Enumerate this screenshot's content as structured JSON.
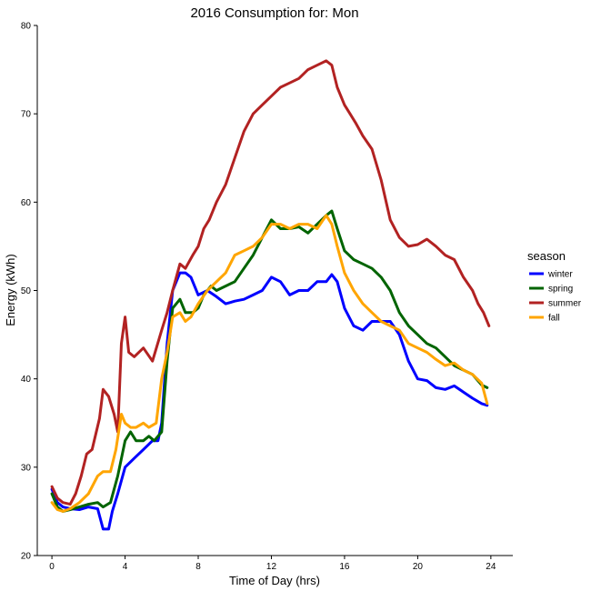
{
  "chart_data": {
    "type": "line",
    "title": "2016 Consumption for:  Mon",
    "xlabel": "Time of Day (hrs)",
    "ylabel": "Energy (kWh)",
    "xlim": [
      -0.8,
      25.2
    ],
    "ylim": [
      20,
      80
    ],
    "xticks": [
      0,
      4,
      8,
      12,
      16,
      20,
      24
    ],
    "yticks": [
      20,
      30,
      40,
      50,
      60,
      70,
      80
    ],
    "legend_title": "season",
    "legend_position": "right",
    "series": [
      {
        "name": "winter",
        "color": "#0000ff",
        "points": [
          [
            0,
            27.5
          ],
          [
            0.3,
            26
          ],
          [
            0.6,
            25.5
          ],
          [
            1,
            25.3
          ],
          [
            1.5,
            25.2
          ],
          [
            2,
            25.5
          ],
          [
            2.5,
            25.3
          ],
          [
            2.8,
            23
          ],
          [
            3.1,
            23
          ],
          [
            3.3,
            25
          ],
          [
            3.6,
            27
          ],
          [
            4,
            30
          ],
          [
            4.5,
            31
          ],
          [
            5,
            32
          ],
          [
            5.5,
            33
          ],
          [
            5.8,
            33
          ],
          [
            6,
            35
          ],
          [
            6.3,
            44
          ],
          [
            6.6,
            50
          ],
          [
            7,
            52
          ],
          [
            7.3,
            52
          ],
          [
            7.6,
            51.5
          ],
          [
            8,
            49.5
          ],
          [
            8.5,
            50
          ],
          [
            9,
            49.3
          ],
          [
            9.5,
            48.5
          ],
          [
            10,
            48.8
          ],
          [
            10.5,
            49
          ],
          [
            11,
            49.5
          ],
          [
            11.5,
            50
          ],
          [
            12,
            51.5
          ],
          [
            12.5,
            51
          ],
          [
            13,
            49.5
          ],
          [
            13.5,
            50
          ],
          [
            14,
            50
          ],
          [
            14.5,
            51
          ],
          [
            15,
            51
          ],
          [
            15.3,
            51.8
          ],
          [
            15.6,
            51
          ],
          [
            16,
            48
          ],
          [
            16.5,
            46
          ],
          [
            17,
            45.5
          ],
          [
            17.5,
            46.5
          ],
          [
            18,
            46.5
          ],
          [
            18.5,
            46.5
          ],
          [
            19,
            45
          ],
          [
            19.5,
            42
          ],
          [
            20,
            40
          ],
          [
            20.5,
            39.8
          ],
          [
            21,
            39
          ],
          [
            21.5,
            38.8
          ],
          [
            22,
            39.2
          ],
          [
            22.5,
            38.5
          ],
          [
            23,
            37.8
          ],
          [
            23.5,
            37.2
          ],
          [
            23.8,
            37
          ]
        ]
      },
      {
        "name": "spring",
        "color": "#006400",
        "points": [
          [
            0,
            27
          ],
          [
            0.3,
            25.5
          ],
          [
            0.6,
            25
          ],
          [
            1,
            25.2
          ],
          [
            1.5,
            25.5
          ],
          [
            2,
            25.8
          ],
          [
            2.5,
            26
          ],
          [
            2.8,
            25.5
          ],
          [
            3.2,
            26
          ],
          [
            3.6,
            29
          ],
          [
            4,
            33
          ],
          [
            4.3,
            34
          ],
          [
            4.6,
            33
          ],
          [
            5,
            33
          ],
          [
            5.3,
            33.5
          ],
          [
            5.6,
            33
          ],
          [
            6,
            34
          ],
          [
            6.3,
            42
          ],
          [
            6.6,
            48
          ],
          [
            7,
            49
          ],
          [
            7.3,
            47.5
          ],
          [
            7.7,
            47.5
          ],
          [
            8,
            48
          ],
          [
            8.3,
            49.5
          ],
          [
            8.7,
            50.5
          ],
          [
            9,
            50
          ],
          [
            9.5,
            50.5
          ],
          [
            10,
            51
          ],
          [
            10.5,
            52.5
          ],
          [
            11,
            54
          ],
          [
            11.5,
            56
          ],
          [
            12,
            58
          ],
          [
            12.5,
            57
          ],
          [
            13,
            57
          ],
          [
            13.5,
            57.2
          ],
          [
            14,
            56.5
          ],
          [
            14.5,
            57.5
          ],
          [
            15,
            58.5
          ],
          [
            15.3,
            59
          ],
          [
            15.6,
            57
          ],
          [
            16,
            54.5
          ],
          [
            16.5,
            53.5
          ],
          [
            17,
            53
          ],
          [
            17.5,
            52.5
          ],
          [
            18,
            51.5
          ],
          [
            18.5,
            50
          ],
          [
            19,
            47.5
          ],
          [
            19.5,
            46
          ],
          [
            20,
            45
          ],
          [
            20.5,
            44
          ],
          [
            21,
            43.5
          ],
          [
            21.5,
            42.5
          ],
          [
            22,
            41.5
          ],
          [
            22.5,
            41
          ],
          [
            23,
            40.5
          ],
          [
            23.5,
            39.3
          ],
          [
            23.8,
            39
          ]
        ]
      },
      {
        "name": "summer",
        "color": "#b22222",
        "points": [
          [
            0,
            27.8
          ],
          [
            0.3,
            26.5
          ],
          [
            0.6,
            26
          ],
          [
            1,
            25.8
          ],
          [
            1.3,
            27
          ],
          [
            1.6,
            29
          ],
          [
            1.9,
            31.5
          ],
          [
            2.2,
            32
          ],
          [
            2.6,
            35.5
          ],
          [
            2.8,
            38.8
          ],
          [
            3.1,
            38
          ],
          [
            3.4,
            36
          ],
          [
            3.6,
            34
          ],
          [
            3.8,
            44
          ],
          [
            4,
            47
          ],
          [
            4.2,
            43
          ],
          [
            4.5,
            42.5
          ],
          [
            5,
            43.5
          ],
          [
            5.5,
            42
          ],
          [
            6,
            45.5
          ],
          [
            6.3,
            47.5
          ],
          [
            6.6,
            50
          ],
          [
            7,
            53
          ],
          [
            7.3,
            52.5
          ],
          [
            7.7,
            54
          ],
          [
            8,
            55
          ],
          [
            8.3,
            57
          ],
          [
            8.6,
            58
          ],
          [
            9,
            60
          ],
          [
            9.5,
            62
          ],
          [
            10,
            65
          ],
          [
            10.5,
            68
          ],
          [
            11,
            70
          ],
          [
            11.5,
            71
          ],
          [
            12,
            72
          ],
          [
            12.5,
            73
          ],
          [
            13,
            73.5
          ],
          [
            13.5,
            74
          ],
          [
            14,
            75
          ],
          [
            14.5,
            75.5
          ],
          [
            15,
            76
          ],
          [
            15.3,
            75.5
          ],
          [
            15.6,
            73
          ],
          [
            16,
            71
          ],
          [
            16.3,
            70
          ],
          [
            16.6,
            69
          ],
          [
            17,
            67.5
          ],
          [
            17.5,
            66
          ],
          [
            18,
            62.5
          ],
          [
            18.5,
            58
          ],
          [
            19,
            56
          ],
          [
            19.5,
            55
          ],
          [
            20,
            55.2
          ],
          [
            20.5,
            55.8
          ],
          [
            21,
            55
          ],
          [
            21.5,
            54
          ],
          [
            22,
            53.5
          ],
          [
            22.5,
            51.5
          ],
          [
            23,
            50
          ],
          [
            23.3,
            48.5
          ],
          [
            23.6,
            47.5
          ],
          [
            23.9,
            46
          ]
        ]
      },
      {
        "name": "fall",
        "color": "#ffa500",
        "points": [
          [
            0,
            26
          ],
          [
            0.3,
            25.2
          ],
          [
            0.6,
            25
          ],
          [
            1,
            25.3
          ],
          [
            1.5,
            26
          ],
          [
            2,
            27
          ],
          [
            2.5,
            29
          ],
          [
            2.8,
            29.5
          ],
          [
            3.2,
            29.5
          ],
          [
            3.5,
            32
          ],
          [
            3.8,
            36
          ],
          [
            4,
            35
          ],
          [
            4.3,
            34.5
          ],
          [
            4.6,
            34.5
          ],
          [
            5,
            35
          ],
          [
            5.3,
            34.5
          ],
          [
            5.7,
            35
          ],
          [
            6,
            40
          ],
          [
            6.3,
            43
          ],
          [
            6.6,
            47
          ],
          [
            7,
            47.5
          ],
          [
            7.3,
            46.5
          ],
          [
            7.6,
            47
          ],
          [
            8,
            48.5
          ],
          [
            8.5,
            50
          ],
          [
            9,
            51
          ],
          [
            9.5,
            52
          ],
          [
            10,
            54
          ],
          [
            10.5,
            54.5
          ],
          [
            11,
            55
          ],
          [
            11.5,
            56
          ],
          [
            12,
            57.5
          ],
          [
            12.5,
            57.5
          ],
          [
            13,
            57
          ],
          [
            13.5,
            57.5
          ],
          [
            14,
            57.5
          ],
          [
            14.5,
            57
          ],
          [
            15,
            58.5
          ],
          [
            15.3,
            57.5
          ],
          [
            15.6,
            55
          ],
          [
            16,
            52
          ],
          [
            16.5,
            50
          ],
          [
            17,
            48.5
          ],
          [
            17.5,
            47.5
          ],
          [
            18,
            46.5
          ],
          [
            18.5,
            46
          ],
          [
            19,
            45.5
          ],
          [
            19.5,
            44
          ],
          [
            20,
            43.5
          ],
          [
            20.5,
            43
          ],
          [
            21,
            42.2
          ],
          [
            21.5,
            41.5
          ],
          [
            22,
            41.8
          ],
          [
            22.5,
            41
          ],
          [
            23,
            40.5
          ],
          [
            23.5,
            39.5
          ],
          [
            23.8,
            37.2
          ]
        ]
      }
    ]
  }
}
